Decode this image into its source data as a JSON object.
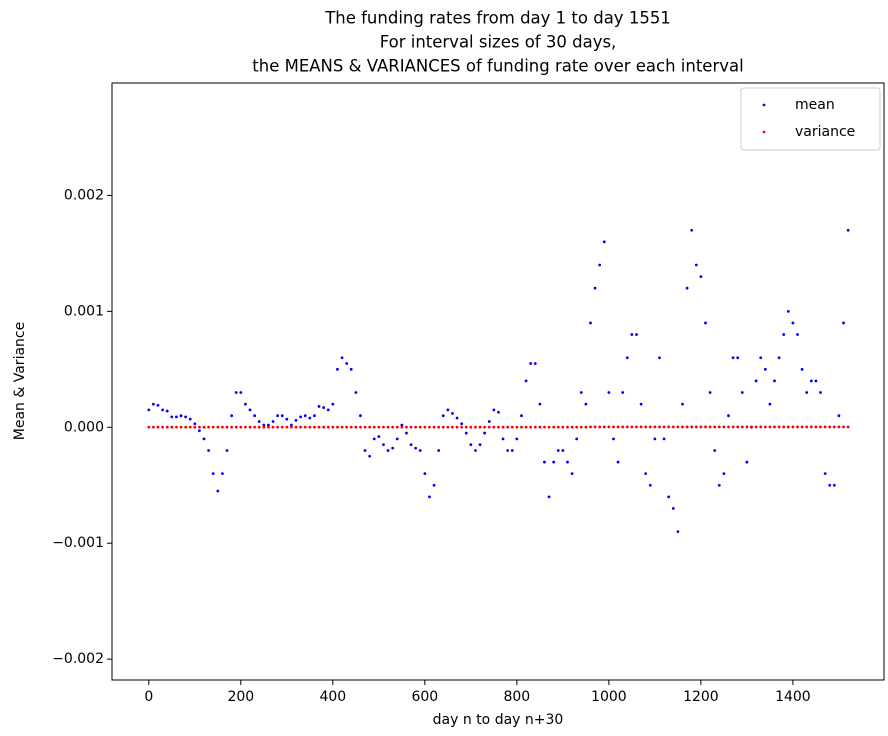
{
  "chart_data": {
    "type": "scatter",
    "title": [
      "The funding rates from day 1 to day 1551",
      "For interval sizes of 30 days,",
      "the MEANS & VARIANCES of funding rate over each interval"
    ],
    "x_label": "day n to day n+30",
    "y_label": "Mean & Variance",
    "legend": "upper right",
    "xlim": [
      -80,
      1598
    ],
    "ylim": [
      -0.00218,
      0.00297
    ],
    "xticks": [
      0,
      200,
      400,
      600,
      800,
      1000,
      1200,
      1400
    ],
    "yticks": [
      {
        "value": -0.002,
        "label": "−0.002"
      },
      {
        "value": -0.001,
        "label": "−0.001"
      },
      {
        "value": 0,
        "label": "0.000"
      },
      0.001,
      0.002
    ],
    "x": [
      0,
      10,
      20,
      30,
      40,
      50,
      60,
      70,
      80,
      90,
      100,
      110,
      120,
      130,
      140,
      150,
      160,
      170,
      180,
      190,
      200,
      210,
      220,
      230,
      240,
      250,
      260,
      270,
      280,
      290,
      300,
      310,
      320,
      330,
      340,
      350,
      360,
      370,
      380,
      390,
      400,
      410,
      420,
      430,
      440,
      450,
      460,
      470,
      480,
      490,
      500,
      510,
      520,
      530,
      540,
      550,
      560,
      570,
      580,
      590,
      600,
      610,
      620,
      630,
      640,
      650,
      660,
      670,
      680,
      690,
      700,
      710,
      720,
      730,
      740,
      750,
      760,
      770,
      780,
      790,
      800,
      810,
      820,
      830,
      840,
      850,
      860,
      870,
      880,
      890,
      900,
      910,
      920,
      930,
      940,
      950,
      960,
      970,
      980,
      990,
      1000,
      1010,
      1020,
      1030,
      1040,
      1050,
      1060,
      1070,
      1080,
      1090,
      1100,
      1110,
      1120,
      1130,
      1140,
      1150,
      1160,
      1170,
      1180,
      1190,
      1200,
      1210,
      1220,
      1230,
      1240,
      1250,
      1260,
      1270,
      1280,
      1290,
      1300,
      1310,
      1320,
      1330,
      1340,
      1350,
      1360,
      1370,
      1380,
      1390,
      1400,
      1410,
      1420,
      1430,
      1440,
      1450,
      1460,
      1470,
      1480,
      1490,
      1500,
      1510,
      1520
    ],
    "series": [
      {
        "name": "mean",
        "color": "#0000ff",
        "values": [
          0.00015,
          0.0002,
          0.00019,
          0.00015,
          0.00014,
          9e-05,
          9e-05,
          0.0001,
          9e-05,
          7e-05,
          3e-05,
          -3e-05,
          -0.0001,
          -0.0002,
          -0.0004,
          -0.00055,
          -0.0004,
          -0.0002,
          0.0001,
          0.0003,
          0.0003,
          0.0002,
          0.00015,
          0.0001,
          5e-05,
          2e-05,
          2e-05,
          5e-05,
          0.0001,
          0.0001,
          7e-05,
          2e-05,
          6e-05,
          9e-05,
          0.0001,
          8e-05,
          0.0001,
          0.00018,
          0.00017,
          0.00015,
          0.0002,
          0.0005,
          0.0006,
          0.00055,
          0.0005,
          0.0003,
          0.0001,
          -0.0002,
          -0.00025,
          -0.0001,
          -8e-05,
          -0.00015,
          -0.0002,
          -0.00018,
          -0.0001,
          2e-05,
          -5e-05,
          -0.00015,
          -0.00018,
          -0.0002,
          -0.0004,
          -0.0006,
          -0.0005,
          -0.0002,
          0.0001,
          0.00015,
          0.00012,
          8e-05,
          3e-05,
          -5e-05,
          -0.00015,
          -0.0002,
          -0.00015,
          -5e-05,
          5e-05,
          0.00015,
          0.00013,
          -0.0001,
          -0.0002,
          -0.0002,
          -0.0001,
          0.0001,
          0.0004,
          0.00055,
          0.00055,
          0.0002,
          -0.0003,
          -0.0006,
          -0.0003,
          -0.0002,
          -0.0002,
          -0.0003,
          -0.0004,
          -0.0001,
          0.0003,
          0.0002,
          0.0009,
          0.0012,
          0.0014,
          0.0016,
          0.0003,
          -0.0001,
          -0.0003,
          0.0003,
          0.0006,
          0.0008,
          0.0008,
          0.0002,
          -0.0004,
          -0.0005,
          -0.0001,
          0.0006,
          -0.0001,
          -0.0006,
          -0.0007,
          -0.0009,
          0.0002,
          0.0012,
          0.0017,
          0.0014,
          0.0013,
          0.0009,
          0.0003,
          -0.0002,
          -0.0005,
          -0.0004,
          0.0001,
          0.0006,
          0.0006,
          0.0003,
          -0.0003,
          0,
          0.0004,
          0.0006,
          0.0005,
          0.0002,
          0.0004,
          0.0006,
          0.0008,
          0.001,
          0.0009,
          0.0008,
          0.0005,
          0.0003,
          0.0004,
          0.0004,
          0.0003,
          -0.0004,
          -0.0005,
          -0.0005,
          0.0001,
          0.0009,
          0.0017
        ]
      },
      {
        "name": "variance",
        "color": "#ff0000",
        "values": [
          1e-06,
          1e-06,
          1e-06,
          1e-06,
          1e-06,
          1e-06,
          1e-06,
          1e-06,
          1e-06,
          1e-06,
          1e-06,
          1e-06,
          1e-06,
          1e-06,
          1e-06,
          1e-06,
          1e-06,
          1e-06,
          1e-06,
          1e-06,
          1e-06,
          1e-06,
          1e-06,
          1e-06,
          1e-06,
          1e-06,
          1e-06,
          1e-06,
          1e-06,
          1e-06,
          1e-06,
          1e-06,
          1e-06,
          1e-06,
          1e-06,
          1e-06,
          1e-06,
          1e-06,
          1e-06,
          1e-06,
          1e-06,
          1e-06,
          1e-06,
          1e-06,
          1e-06,
          1e-06,
          1e-06,
          1e-06,
          1e-06,
          1e-06,
          1e-06,
          1e-06,
          1e-06,
          1e-06,
          1e-06,
          1e-06,
          1e-06,
          1e-06,
          1e-06,
          1e-06,
          1e-06,
          1e-06,
          1e-06,
          1e-06,
          1e-06,
          1e-06,
          1e-06,
          1e-06,
          1e-06,
          1e-06,
          1e-06,
          1e-06,
          1e-06,
          1e-06,
          1e-06,
          1e-06,
          1e-06,
          1e-06,
          1e-06,
          1e-06,
          1e-06,
          1e-06,
          1e-06,
          1e-06,
          1e-06,
          1e-06,
          1e-06,
          1e-06,
          1e-06,
          1e-06,
          1e-06,
          1e-06,
          1e-06,
          1e-06,
          1e-06,
          1e-06,
          3e-06,
          3e-06,
          3e-06,
          3e-06,
          3e-06,
          3e-06,
          3e-06,
          3e-06,
          3e-06,
          3e-06,
          3e-06,
          3e-06,
          3e-06,
          3e-06,
          3e-06,
          3e-06,
          3e-06,
          3e-06,
          3e-06,
          3e-06,
          3e-06,
          3e-06,
          3e-06,
          3e-06,
          3e-06,
          3e-06,
          3e-06,
          3e-06,
          3e-06,
          3e-06,
          3e-06,
          3e-06,
          3e-06,
          3e-06,
          3e-06,
          3e-06,
          3e-06,
          3e-06,
          3e-06,
          3e-06,
          3e-06,
          3e-06,
          3e-06,
          3e-06,
          3e-06,
          3e-06,
          3e-06,
          3e-06,
          3e-06,
          3e-06,
          3e-06,
          3e-06,
          3e-06,
          3e-06,
          3e-06,
          3e-06,
          3e-06
        ]
      }
    ]
  }
}
